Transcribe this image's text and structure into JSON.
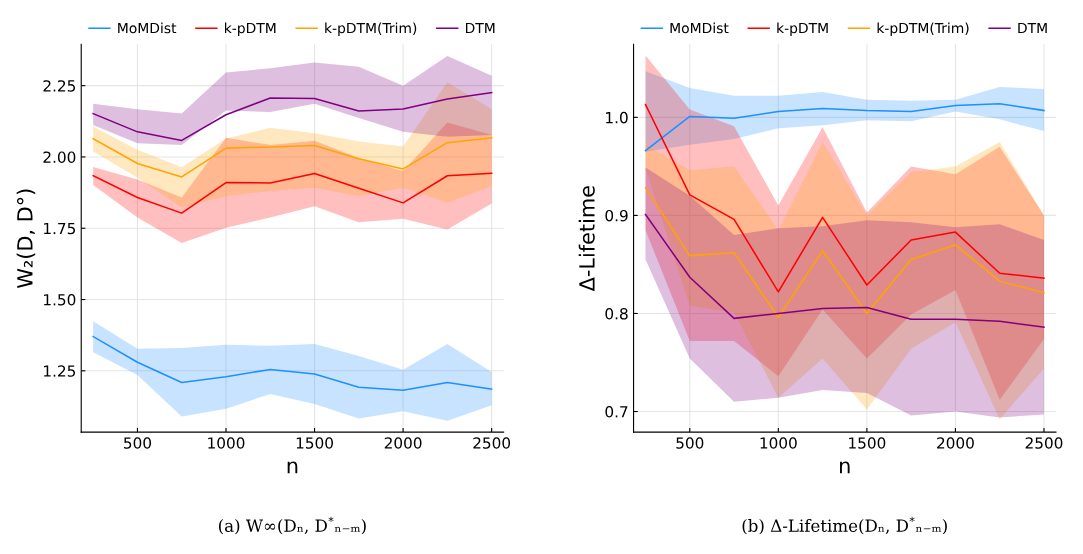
{
  "chart_data": [
    {
      "type": "line",
      "xlabel": "n",
      "ylabel": "W₂(D, D°)",
      "annotations": [
        "(a) W∞(Dₙ, D$^{*}$ₙ₋ₘ)"
      ],
      "x": [
        250,
        500,
        750,
        1000,
        1250,
        1500,
        1750,
        2000,
        2250,
        2500
      ],
      "xlim": [
        182.5,
        2567.5
      ],
      "xticks": [
        500,
        1000,
        1500,
        2000,
        2500
      ],
      "ylim": [
        1.035,
        2.395
      ],
      "yticks": [
        {
          "value": 1.25,
          "label": "1.25"
        },
        {
          "value": 1.5,
          "label": "1.50"
        },
        {
          "value": 1.75,
          "label": "1.75"
        },
        {
          "value": 2.0,
          "label": "2.00"
        },
        {
          "value": 2.25,
          "label": "2.25"
        }
      ],
      "grid": true,
      "legend": "top",
      "line_style": "solid",
      "marker": "none",
      "series": [
        {
          "name": "MoMDist",
          "color": "#1e90ff",
          "values": [
            1.37,
            1.28,
            1.209,
            1.229,
            1.255,
            1.239,
            1.192,
            1.182,
            1.209,
            1.186
          ],
          "lower": [
            1.315,
            1.235,
            1.09,
            1.117,
            1.169,
            1.134,
            1.083,
            1.108,
            1.075,
            1.129
          ],
          "upper": [
            1.424,
            1.327,
            1.33,
            1.341,
            1.338,
            1.344,
            1.302,
            1.254,
            1.344,
            1.246
          ]
        },
        {
          "name": "k-pDTM",
          "color": "#ff0000",
          "values": [
            1.934,
            1.858,
            1.803,
            1.91,
            1.909,
            1.942,
            1.89,
            1.839,
            1.934,
            1.943
          ],
          "lower": [
            1.902,
            1.788,
            1.698,
            1.752,
            1.788,
            1.827,
            1.771,
            1.783,
            1.746,
            1.837
          ],
          "upper": [
            1.965,
            1.921,
            1.858,
            2.067,
            2.042,
            2.057,
            1.996,
            1.95,
            2.121,
            2.077
          ]
        },
        {
          "name": "k-pDTM(Trim)",
          "color": "#ffa500",
          "values": [
            2.064,
            1.977,
            1.93,
            2.031,
            2.035,
            2.04,
            1.994,
            1.958,
            2.05,
            2.067
          ],
          "lower": [
            2.019,
            1.927,
            1.823,
            1.863,
            1.881,
            1.892,
            1.863,
            1.892,
            1.84,
            1.898
          ],
          "upper": [
            2.107,
            2.025,
            1.964,
            2.065,
            2.102,
            2.083,
            2.054,
            2.037,
            2.262,
            2.167
          ]
        },
        {
          "name": "DTM",
          "color": "#800080",
          "values": [
            2.152,
            2.088,
            2.058,
            2.148,
            2.207,
            2.205,
            2.161,
            2.168,
            2.203,
            2.226
          ],
          "lower": [
            2.112,
            2.048,
            2.042,
            2.163,
            2.158,
            2.187,
            2.137,
            2.088,
            2.071,
            2.077
          ],
          "upper": [
            2.187,
            2.167,
            2.152,
            2.296,
            2.311,
            2.331,
            2.316,
            2.25,
            2.354,
            2.285
          ]
        }
      ]
    },
    {
      "type": "line",
      "xlabel": "n",
      "ylabel": "Δ-Lifetime",
      "annotations": [
        "(b) Δ-Lifetime(Dₙ, D$^{*}$ₙ₋ₘ)"
      ],
      "x": [
        250,
        500,
        750,
        1000,
        1250,
        1500,
        1750,
        2000,
        2250,
        2500
      ],
      "xlim": [
        182.5,
        2567.5
      ],
      "xticks": [
        500,
        1000,
        1500,
        2000,
        2500
      ],
      "ylim": [
        0.679,
        1.0745
      ],
      "yticks": [
        {
          "value": 0.7,
          "label": "0.7"
        },
        {
          "value": 0.8,
          "label": "0.8"
        },
        {
          "value": 0.9,
          "label": "0.9"
        },
        {
          "value": 1.0,
          "label": "1.0"
        }
      ],
      "grid": true,
      "legend": "top",
      "line_style": "solid",
      "marker": "none",
      "series": [
        {
          "name": "MoMDist",
          "color": "#1e90ff",
          "values": [
            0.966,
            1.001,
            0.999,
            1.006,
            1.009,
            1.007,
            1.006,
            1.012,
            1.014,
            1.007
          ],
          "lower": [
            0.965,
            0.972,
            0.978,
            0.989,
            0.992,
            0.997,
            0.996,
            1.006,
            0.998,
            0.986
          ],
          "upper": [
            1.047,
            1.03,
            1.022,
            1.022,
            1.026,
            1.018,
            1.017,
            1.018,
            1.031,
            1.029
          ]
        },
        {
          "name": "k-pDTM",
          "color": "#ff0000",
          "values": [
            1.013,
            0.921,
            0.896,
            0.822,
            0.898,
            0.829,
            0.875,
            0.883,
            0.841,
            0.836
          ],
          "lower": [
            0.885,
            0.772,
            0.772,
            0.736,
            0.804,
            0.754,
            0.799,
            0.824,
            0.712,
            0.774
          ],
          "upper": [
            1.063,
            1.008,
            0.991,
            0.91,
            0.99,
            0.903,
            0.95,
            0.942,
            0.97,
            0.9
          ]
        },
        {
          "name": "k-pDTM(Trim)",
          "color": "#ffa500",
          "values": [
            0.928,
            0.859,
            0.862,
            0.796,
            0.864,
            0.8,
            0.855,
            0.87,
            0.833,
            0.821
          ],
          "lower": [
            0.949,
            0.808,
            0.801,
            0.714,
            0.754,
            0.702,
            0.764,
            0.791,
            0.692,
            0.744
          ],
          "upper": [
            0.972,
            0.946,
            0.95,
            0.885,
            0.975,
            0.9,
            0.944,
            0.95,
            0.975,
            0.9
          ]
        },
        {
          "name": "DTM",
          "color": "#800080",
          "values": [
            0.901,
            0.837,
            0.795,
            0.8,
            0.805,
            0.806,
            0.794,
            0.794,
            0.792,
            0.786
          ],
          "lower": [
            0.855,
            0.754,
            0.71,
            0.714,
            0.722,
            0.719,
            0.696,
            0.7,
            0.694,
            0.697
          ],
          "upper": [
            0.949,
            0.92,
            0.88,
            0.887,
            0.889,
            0.895,
            0.893,
            0.888,
            0.891,
            0.875
          ]
        }
      ]
    }
  ]
}
